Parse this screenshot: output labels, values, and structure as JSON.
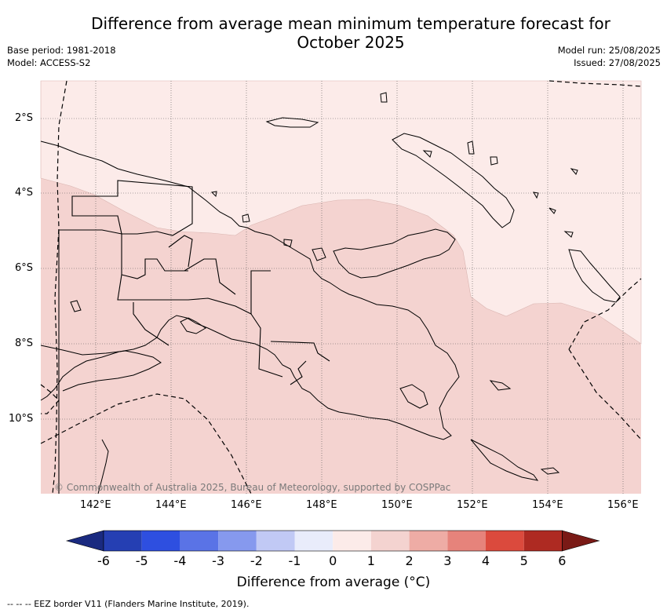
{
  "title": "Difference from average mean minimum temperature forecast for October 2025",
  "base_period": "Base period: 1981-2018",
  "model": "Model: ACCESS-S2",
  "model_run": "Model run: 25/08/2025",
  "issued": "Issued: 27/08/2025",
  "copyright": "© Commonwealth of Australia 2025, Bureau of Meteorology, supported by COSPPac",
  "footnote": "-- -- -- EEZ border V11 (Flanders Marine Institute, 2019).",
  "lat_labels": [
    "2°S",
    "4°S",
    "6°S",
    "8°S",
    "10°S"
  ],
  "lon_labels": [
    "142°E",
    "144°E",
    "146°E",
    "148°E",
    "150°E",
    "152°E",
    "154°E",
    "156°E"
  ],
  "colorbar": {
    "title": "Difference from average (°C)",
    "ticks": [
      "-6",
      "-5",
      "-4",
      "-3",
      "-2",
      "-1",
      "0",
      "1",
      "2",
      "3",
      "4",
      "5",
      "6"
    ],
    "colors": [
      "#1a2a80",
      "#253fb3",
      "#2e4fe0",
      "#5a73e6",
      "#8699ee",
      "#c1c9f5",
      "#e9ecfb",
      "#fcebe9",
      "#f4d3d0",
      "#eeaca5",
      "#e6837b",
      "#db4a3d",
      "#ae2a22",
      "#7a1a16"
    ]
  },
  "legend_fill": {
    "0_to_1": "#fcebe9",
    "1_to_2": "#f4d3d0"
  }
}
